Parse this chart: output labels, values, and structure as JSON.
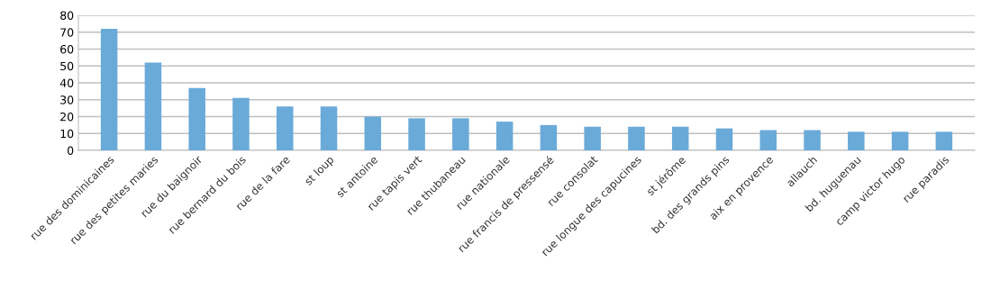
{
  "chart_data": {
    "type": "bar",
    "categories": [
      "rue des dominicaines",
      "rue des petites maries",
      "rue du baignoir",
      "rue bernard du bois",
      "rue de la fare",
      "st loup",
      "st antoine",
      "rue tapis vert",
      "rue thubaneau",
      "rue nationale",
      "rue francis de pressensé",
      "rue consolat",
      "rue longue des capucines",
      "st jérôme",
      "bd. des grands pins",
      "aix en provence",
      "allauch",
      "bd. huguenau",
      "camp victor hugo",
      "rue paradis"
    ],
    "values": [
      72,
      52,
      37,
      31,
      26,
      26,
      20,
      19,
      19,
      17,
      15,
      14,
      14,
      14,
      13,
      12,
      12,
      11,
      11,
      11
    ],
    "color": "#6aaad8",
    "ylim": [
      0,
      80
    ],
    "yticks": [
      0,
      10,
      20,
      30,
      40,
      50,
      60,
      70,
      80
    ],
    "grid": "y"
  }
}
